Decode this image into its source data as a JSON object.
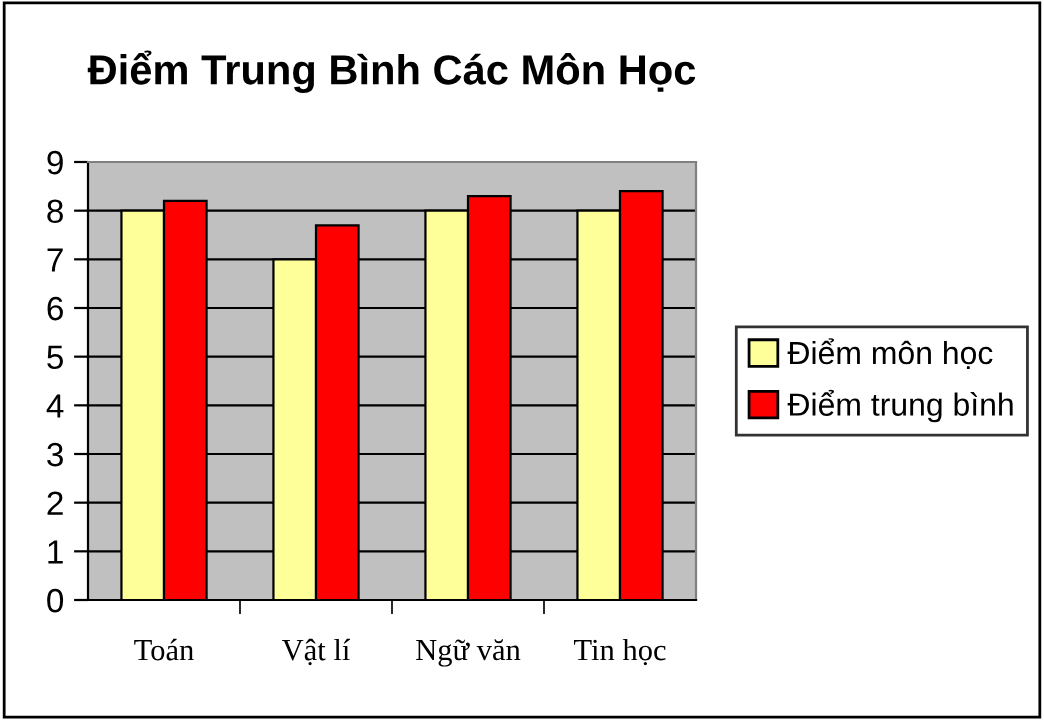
{
  "chart_data": {
    "type": "bar",
    "title": "Điểm Trung Bình Các Môn Học",
    "categories": [
      "Toán",
      "Vật lí",
      "Ngữ văn",
      "Tin học"
    ],
    "series": [
      {
        "name": "Điểm môn học",
        "color": "#ffff99",
        "values": [
          8,
          7,
          8,
          8
        ]
      },
      {
        "name": "Điểm trung bình",
        "color": "#ff0000",
        "values": [
          8.2,
          7.7,
          8.3,
          8.4
        ]
      }
    ],
    "ylim": [
      0,
      9
    ],
    "yticks": [
      0,
      1,
      2,
      3,
      4,
      5,
      6,
      7,
      8,
      9
    ],
    "grid": "y",
    "legend": "right"
  }
}
